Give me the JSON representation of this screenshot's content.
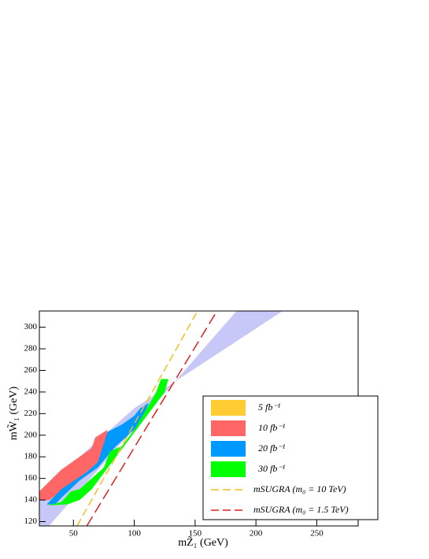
{
  "chart_data": {
    "type": "region",
    "x_label": "mZ̃₁ (GeV)",
    "y_label": "mW̃₁ (GeV)",
    "xlim": [
      22,
      284
    ],
    "ylim": [
      116,
      315
    ],
    "xticks": [
      50,
      100,
      150,
      200,
      250
    ],
    "yticks": [
      120,
      140,
      160,
      180,
      200,
      220,
      240,
      260,
      280,
      300
    ],
    "band": {
      "color": "#c8c8f8",
      "x": [
        22,
        60,
        100,
        222,
        184,
        30,
        22
      ],
      "y": [
        145,
        185,
        225,
        315,
        315,
        116,
        116
      ]
    },
    "series": [
      {
        "name": "5 fb⁻¹",
        "kind": "region",
        "color": "#ffcc33",
        "x": [
          22,
          35,
          48,
          60,
          40,
          22
        ],
        "y": [
          143,
          162,
          170,
          165,
          150,
          140
        ]
      },
      {
        "name": "10 fb⁻¹",
        "kind": "region",
        "color": "#ff6666",
        "x": [
          22,
          22,
          40,
          65,
          68,
          78,
          75,
          60,
          40,
          30
        ],
        "y": [
          140,
          148,
          168,
          188,
          198,
          205,
          180,
          165,
          148,
          140
        ]
      },
      {
        "name": "20 fb⁻¹",
        "kind": "region",
        "color": "#0099ff",
        "x": [
          28,
          40,
          60,
          70,
          78,
          90,
          100,
          105,
          112,
          105,
          95,
          85,
          70,
          55,
          40,
          35
        ],
        "y": [
          136,
          150,
          165,
          175,
          203,
          210,
          218,
          225,
          230,
          210,
          200,
          190,
          170,
          158,
          142,
          136
        ]
      },
      {
        "name": "30 fb⁻¹",
        "kind": "region",
        "color": "#00ff00",
        "x": [
          28,
          40,
          48,
          55,
          65,
          75,
          80,
          90,
          100,
          112,
          118,
          122,
          128,
          125,
          115,
          105,
          95,
          85,
          75,
          65,
          55,
          45
        ],
        "y": [
          135,
          138,
          148,
          150,
          160,
          170,
          185,
          190,
          205,
          228,
          240,
          252,
          252,
          240,
          225,
          210,
          195,
          180,
          165,
          150,
          140,
          136
        ]
      },
      {
        "name": "mSUGRA (m₀ = 10 TeV)",
        "kind": "line",
        "color": "#f0c020",
        "x": [
          53,
          152
        ],
        "y": [
          116,
          315
        ]
      },
      {
        "name": "mSUGRA (m₀ = 1.5 TeV)",
        "kind": "line",
        "color": "#e02020",
        "x": [
          61,
          168
        ],
        "y": [
          116,
          315
        ]
      }
    ]
  }
}
